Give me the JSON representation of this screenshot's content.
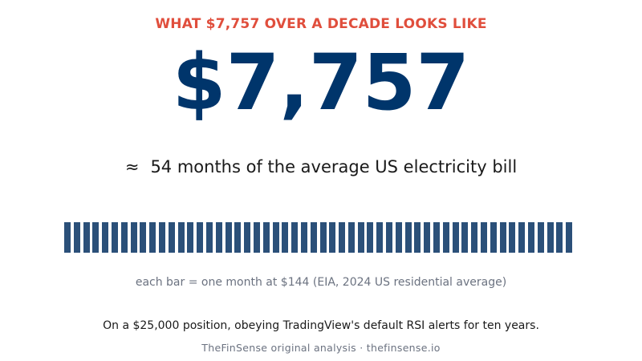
{
  "header": {
    "eyebrow": "WHAT $7,757 OVER A DECADE LOOKS LIKE",
    "amount": "$7,757"
  },
  "equivalence": {
    "symbol": "≈",
    "text": "54 months of the average US electricity bill"
  },
  "month_bars": {
    "count": 54,
    "monthly_bill": 144,
    "color": "#2b5079"
  },
  "caption": "each bar = one month at $144  (EIA, 2024 US residential average)",
  "context": "On a $25,000 position, obeying TradingView's default RSI alerts for ten years.",
  "source": "TheFinSense original analysis · thefinsense.io",
  "colors": {
    "eyebrow": "#e04e3c",
    "amount": "#00356b",
    "bar": "#2b5079"
  }
}
